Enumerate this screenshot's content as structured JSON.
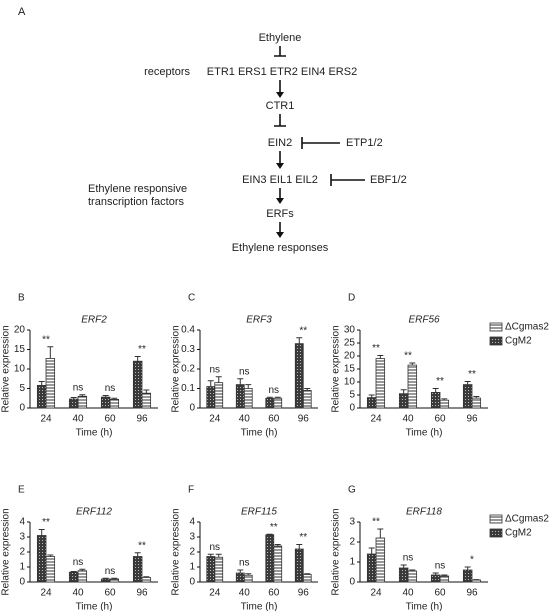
{
  "panel_a": {
    "label": "A",
    "ethylene": "Ethylene",
    "receptors_label": "receptors",
    "receptors": "ETR1 ERS1 ETR2 EIN4 ERS2",
    "ctr1": "CTR1",
    "ein2": "EIN2",
    "etp": "ETP1/2",
    "ein3": "EIN3 EIL1 EIL2",
    "ebf": "EBF1/2",
    "tf_label": [
      "Ethylene responsive",
      "transcription factors"
    ],
    "erfs": "ERFs",
    "responses": "Ethylene responses"
  },
  "chart_data": [
    {
      "type": "bar",
      "panel": "B",
      "title": "ERF2",
      "xlabel": "Time (h)",
      "ylabel": "Relative expression",
      "categories": [
        "24",
        "40",
        "60",
        "96"
      ],
      "ylim": [
        0,
        20
      ],
      "yticks": [
        0,
        5,
        10,
        15,
        20
      ],
      "legend": false,
      "series": [
        {
          "name": "ΔCgmas2",
          "pattern": "horizontal-stripes",
          "color": "#333333",
          "values": [
            12.7,
            3,
            2.2,
            3.8
          ],
          "errors": [
            3,
            0.4,
            0.3,
            0.8
          ]
        },
        {
          "name": "CgM2",
          "pattern": "checkered",
          "color": "#333333",
          "values": [
            5.8,
            2.3,
            2.8,
            12
          ],
          "errors": [
            1,
            0.4,
            0.4,
            1.2
          ]
        }
      ],
      "annotations": [
        "**",
        "ns",
        "ns",
        "**"
      ]
    },
    {
      "type": "bar",
      "panel": "C",
      "title": "ERF3",
      "xlabel": "Time (h)",
      "ylabel": "Relative expression",
      "categories": [
        "24",
        "40",
        "60",
        "96"
      ],
      "ylim": [
        0,
        0.4
      ],
      "yticks": [
        0,
        0.1,
        0.2,
        0.3,
        0.4
      ],
      "legend": false,
      "series": [
        {
          "name": "ΔCgmas2",
          "pattern": "horizontal-stripes",
          "color": "#333333",
          "values": [
            0.13,
            0.1,
            0.05,
            0.09
          ],
          "errors": [
            0.03,
            0.02,
            0.005,
            0.01
          ]
        },
        {
          "name": "CgM2",
          "pattern": "checkered",
          "color": "#333333",
          "values": [
            0.11,
            0.12,
            0.05,
            0.33
          ],
          "errors": [
            0.03,
            0.03,
            0.005,
            0.03
          ]
        }
      ],
      "annotations": [
        "ns",
        "ns",
        "ns",
        "**"
      ]
    },
    {
      "type": "bar",
      "panel": "D",
      "title": "ERF56",
      "xlabel": "Time (h)",
      "ylabel": "Relative expression",
      "categories": [
        "24",
        "40",
        "60",
        "96"
      ],
      "ylim": [
        0,
        30
      ],
      "yticks": [
        0,
        5,
        10,
        15,
        20,
        25,
        30
      ],
      "legend": true,
      "series": [
        {
          "name": "ΔCgmas2",
          "pattern": "horizontal-stripes",
          "color": "#333333",
          "values": [
            19,
            16.5,
            3,
            3.8
          ],
          "errors": [
            1.2,
            0.8,
            0.5,
            0.6
          ]
        },
        {
          "name": "CgM2",
          "pattern": "checkered",
          "color": "#333333",
          "values": [
            4,
            5.5,
            6,
            9
          ],
          "errors": [
            1,
            1.5,
            1.5,
            1.2
          ]
        }
      ],
      "annotations": [
        "**",
        "**",
        "**",
        "**"
      ]
    },
    {
      "type": "bar",
      "panel": "E",
      "title": "ERF112",
      "xlabel": "Time (h)",
      "ylabel": "Relative expression",
      "categories": [
        "24",
        "40",
        "60",
        "96"
      ],
      "ylim": [
        0,
        4
      ],
      "yticks": [
        0,
        1,
        2,
        3,
        4
      ],
      "legend": false,
      "series": [
        {
          "name": "ΔCgmas2",
          "pattern": "horizontal-stripes",
          "color": "#333333",
          "values": [
            1.7,
            0.75,
            0.2,
            0.3
          ],
          "errors": [
            0.1,
            0.1,
            0.05,
            0.05
          ]
        },
        {
          "name": "CgM2",
          "pattern": "checkered",
          "color": "#333333",
          "values": [
            3.1,
            0.65,
            0.2,
            1.7
          ],
          "errors": [
            0.4,
            0.05,
            0.05,
            0.25
          ]
        }
      ],
      "annotations": [
        "**",
        "ns",
        "ns",
        "**"
      ]
    },
    {
      "type": "bar",
      "panel": "F",
      "title": "ERF115",
      "xlabel": "Time (h)",
      "ylabel": "Relative expression",
      "categories": [
        "24",
        "40",
        "60",
        "96"
      ],
      "ylim": [
        0,
        4
      ],
      "yticks": [
        0,
        1,
        2,
        3,
        4
      ],
      "legend": false,
      "series": [
        {
          "name": "ΔCgmas2",
          "pattern": "horizontal-stripes",
          "color": "#333333",
          "values": [
            1.65,
            0.45,
            2.4,
            0.5
          ],
          "errors": [
            0.2,
            0.1,
            0.1,
            0.05
          ]
        },
        {
          "name": "CgM2",
          "pattern": "checkered",
          "color": "#333333",
          "values": [
            1.7,
            0.6,
            3.15,
            2.2
          ],
          "errors": [
            0.15,
            0.2,
            0.03,
            0.3
          ]
        }
      ],
      "annotations": [
        "ns",
        "ns",
        "**",
        "**"
      ]
    },
    {
      "type": "bar",
      "panel": "G",
      "title": "ERF118",
      "xlabel": "Time (h)",
      "ylabel": "Relative expression",
      "categories": [
        "24",
        "40",
        "60",
        "96"
      ],
      "ylim": [
        0,
        3
      ],
      "yticks": [
        0,
        1,
        2,
        3
      ],
      "legend": true,
      "series": [
        {
          "name": "ΔCgmas2",
          "pattern": "horizontal-stripes",
          "color": "#333333",
          "values": [
            2.2,
            0.55,
            0.3,
            0.1
          ],
          "errors": [
            0.45,
            0.05,
            0.05,
            0.02
          ]
        },
        {
          "name": "CgM2",
          "pattern": "checkered",
          "color": "#333333",
          "values": [
            1.4,
            0.7,
            0.35,
            0.6
          ],
          "errors": [
            0.3,
            0.15,
            0.1,
            0.15
          ]
        }
      ],
      "annotations": [
        "**",
        "ns",
        "ns",
        "*"
      ]
    }
  ]
}
